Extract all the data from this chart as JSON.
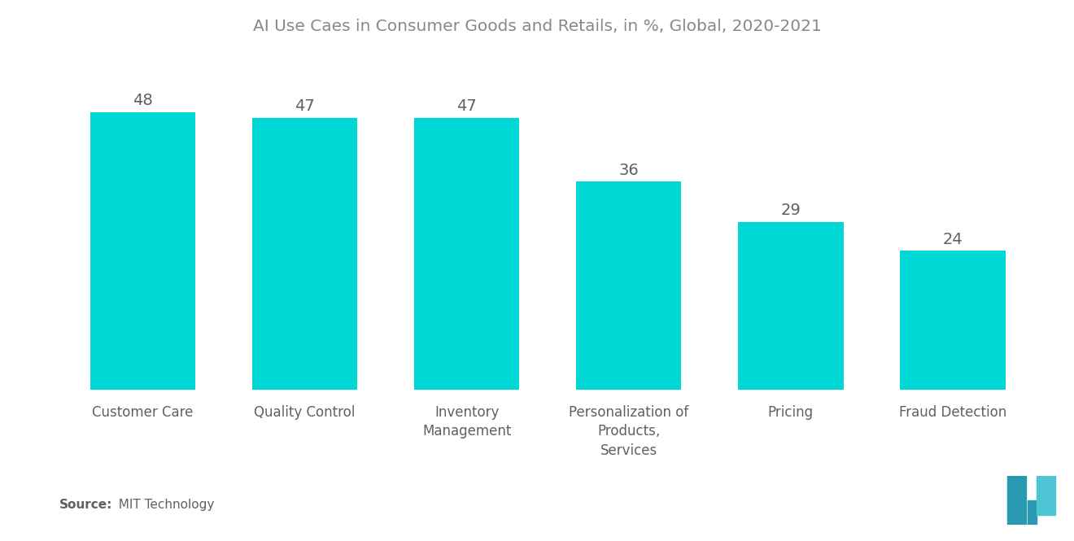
{
  "title": "AI Use Caes in Consumer Goods and Retails, in %, Global, 2020-2021",
  "categories": [
    "Customer Care",
    "Quality Control",
    "Inventory\nManagement",
    "Personalization of\nProducts,\nServices",
    "Pricing",
    "Fraud Detection"
  ],
  "values": [
    48,
    47,
    47,
    36,
    29,
    24
  ],
  "bar_color": "#00D8D5",
  "value_labels": [
    "48",
    "47",
    "47",
    "36",
    "29",
    "24"
  ],
  "ylim": [
    0,
    58
  ],
  "source_bold": "Source:",
  "source_text": "  MIT Technology",
  "title_color": "#888888",
  "label_color": "#606060",
  "value_color": "#606060",
  "source_color": "#606060",
  "background_color": "#ffffff",
  "title_fontsize": 14.5,
  "value_fontsize": 14,
  "label_fontsize": 12,
  "source_fontsize": 11,
  "bar_width": 0.65
}
